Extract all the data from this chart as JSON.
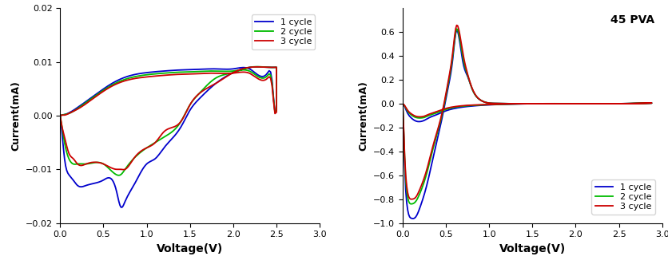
{
  "left": {
    "ylabel": "Current(mA)",
    "xlabel": "Voltage(V)",
    "xlim": [
      0,
      3.0
    ],
    "ylim": [
      -0.02,
      0.02
    ],
    "yticks": [
      -0.02,
      -0.01,
      0.0,
      0.01,
      0.02
    ],
    "xticks": [
      0.0,
      0.5,
      1.0,
      1.5,
      2.0,
      2.5,
      3.0
    ],
    "legend_labels": [
      "1 cycle",
      "2 cycle",
      "3 cycle"
    ],
    "colors": [
      "#0000cc",
      "#00bb00",
      "#cc0000"
    ]
  },
  "right": {
    "ylabel": "Current(mA)",
    "xlabel": "Voltage(V)",
    "xlim": [
      0,
      3.0
    ],
    "ylim": [
      -1.0,
      0.8
    ],
    "yticks": [
      -1.0,
      -0.8,
      -0.6,
      -0.4,
      -0.2,
      0.0,
      0.2,
      0.4,
      0.6
    ],
    "xticks": [
      0.0,
      0.5,
      1.0,
      1.5,
      2.0,
      2.5,
      3.0
    ],
    "annotation": "45 PVA",
    "legend_labels": [
      "1 cycle",
      "2 cycle",
      "3 cycle"
    ],
    "colors": [
      "#0000cc",
      "#00bb00",
      "#cc0000"
    ]
  }
}
